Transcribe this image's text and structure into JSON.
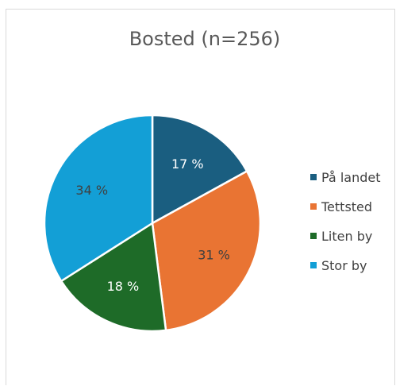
{
  "chart_data": {
    "type": "pie",
    "title": "Bosted (n=256)",
    "categories": [
      "På landet",
      "Tettsted",
      "Liten by",
      "Stor by"
    ],
    "values": [
      17,
      31,
      18,
      34
    ],
    "value_labels": [
      "17 %",
      "31 %",
      "18 %",
      "34 %"
    ],
    "colors": [
      "#1a5e80",
      "#e97433",
      "#1e6b28",
      "#139fd6"
    ],
    "label_colors": [
      "#ffffff",
      "#404040",
      "#ffffff",
      "#404040"
    ],
    "start_angle_deg": 0,
    "direction": "clockwise",
    "legend_position": "right"
  }
}
